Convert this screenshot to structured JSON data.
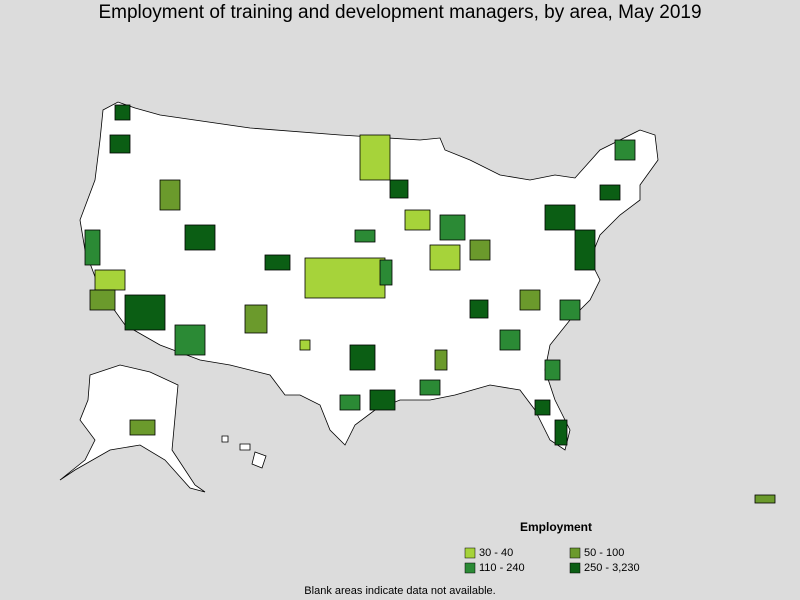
{
  "title": "Employment of training and development managers, by area, May 2019",
  "legend": {
    "title": "Employment",
    "items": [
      {
        "label": "30 - 40",
        "color": "#a6d33a"
      },
      {
        "label": "50 - 100",
        "color": "#6b9a2c"
      },
      {
        "label": "110 - 240",
        "color": "#2b8a35"
      },
      {
        "label": "250 - 3,230",
        "color": "#0b5e14"
      }
    ]
  },
  "footnote": "Blank areas indicate data not available."
}
